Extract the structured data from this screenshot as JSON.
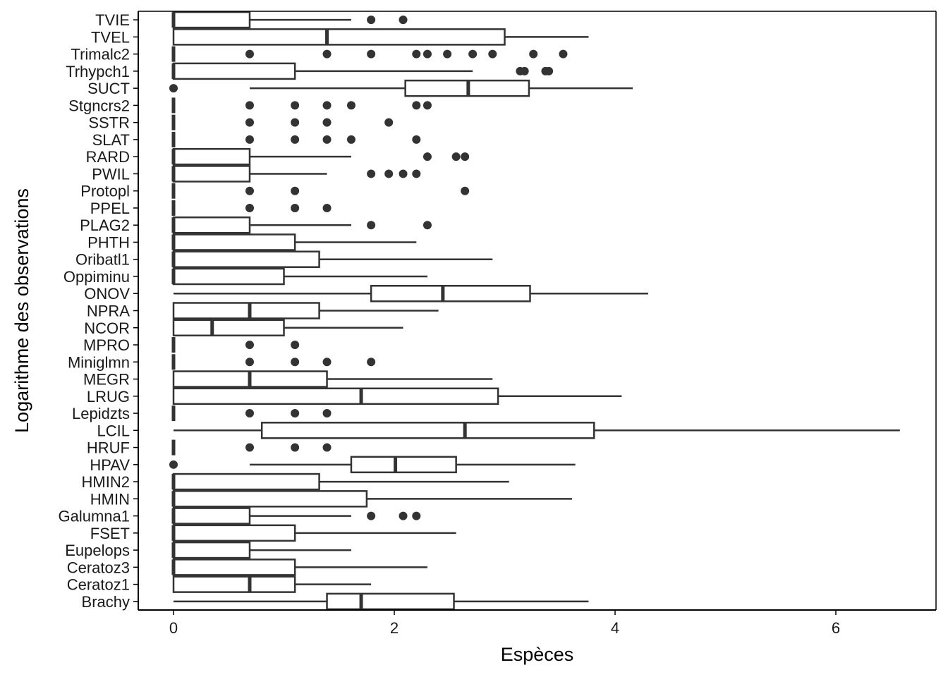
{
  "chart_data": {
    "type": "boxplot",
    "orientation": "horizontal",
    "xlabel": "Espèces",
    "ylabel": "Logarithme des observations",
    "xlim": [
      -0.34,
      6.93
    ],
    "xticks": [
      0,
      2,
      4,
      6
    ],
    "xtick_labels": [
      "0",
      "2",
      "4",
      "6"
    ],
    "grid": false,
    "colors": {
      "box_fill": "#ffffff",
      "line": "#333333",
      "outlier": "#333333",
      "axis": "#000000"
    },
    "categories": [
      {
        "name": "TVIE",
        "whisker_low": 0,
        "q1": 0,
        "median": 0,
        "q3": 0.69,
        "whisker_high": 1.61,
        "outliers": [
          1.79,
          2.08
        ]
      },
      {
        "name": "TVEL",
        "whisker_low": 0,
        "q1": 0,
        "median": 1.39,
        "q3": 3.0,
        "whisker_high": 3.76,
        "outliers": []
      },
      {
        "name": "Trimalc2",
        "whisker_low": 0,
        "q1": 0,
        "median": 0,
        "q3": 0,
        "whisker_high": 0,
        "outliers": [
          0.69,
          1.39,
          1.79,
          2.2,
          2.3,
          2.48,
          2.71,
          2.89,
          3.26,
          3.53
        ]
      },
      {
        "name": "Trhypch1",
        "whisker_low": 0,
        "q1": 0,
        "median": 0,
        "q3": 1.1,
        "whisker_high": 2.71,
        "outliers": [
          3.14,
          3.18,
          3.37,
          3.4
        ]
      },
      {
        "name": "SUCT",
        "whisker_low": 0.69,
        "q1": 2.1,
        "median": 2.67,
        "q3": 3.22,
        "whisker_high": 4.16,
        "outliers": [
          0
        ]
      },
      {
        "name": "Stgncrs2",
        "whisker_low": 0,
        "q1": 0,
        "median": 0,
        "q3": 0,
        "whisker_high": 0,
        "outliers": [
          0.69,
          1.1,
          1.39,
          1.61,
          2.2,
          2.3
        ]
      },
      {
        "name": "SSTR",
        "whisker_low": 0,
        "q1": 0,
        "median": 0,
        "q3": 0,
        "whisker_high": 0,
        "outliers": [
          0.69,
          1.1,
          1.39,
          1.95
        ]
      },
      {
        "name": "SLAT",
        "whisker_low": 0,
        "q1": 0,
        "median": 0,
        "q3": 0,
        "whisker_high": 0,
        "outliers": [
          0.69,
          1.1,
          1.39,
          1.61,
          2.2
        ]
      },
      {
        "name": "RARD",
        "whisker_low": 0,
        "q1": 0,
        "median": 0,
        "q3": 0.69,
        "whisker_high": 1.61,
        "outliers": [
          2.3,
          2.56,
          2.64
        ]
      },
      {
        "name": "PWIL",
        "whisker_low": 0,
        "q1": 0,
        "median": 0,
        "q3": 0.69,
        "whisker_high": 1.39,
        "outliers": [
          1.79,
          1.95,
          2.08,
          2.2
        ]
      },
      {
        "name": "Protopl",
        "whisker_low": 0,
        "q1": 0,
        "median": 0,
        "q3": 0,
        "whisker_high": 0,
        "outliers": [
          0.69,
          1.1,
          2.64
        ]
      },
      {
        "name": "PPEL",
        "whisker_low": 0,
        "q1": 0,
        "median": 0,
        "q3": 0,
        "whisker_high": 0,
        "outliers": [
          0.69,
          1.1,
          1.39
        ]
      },
      {
        "name": "PLAG2",
        "whisker_low": 0,
        "q1": 0,
        "median": 0,
        "q3": 0.69,
        "whisker_high": 1.61,
        "outliers": [
          1.79,
          2.3
        ]
      },
      {
        "name": "PHTH",
        "whisker_low": 0,
        "q1": 0,
        "median": 0,
        "q3": 1.1,
        "whisker_high": 2.2,
        "outliers": []
      },
      {
        "name": "Oribatl1",
        "whisker_low": 0,
        "q1": 0,
        "median": 0,
        "q3": 1.32,
        "whisker_high": 2.89,
        "outliers": []
      },
      {
        "name": "Oppiminu",
        "whisker_low": 0,
        "q1": 0,
        "median": 0,
        "q3": 1.0,
        "whisker_high": 2.3,
        "outliers": []
      },
      {
        "name": "ONOV",
        "whisker_low": 0,
        "q1": 1.79,
        "median": 2.44,
        "q3": 3.23,
        "whisker_high": 4.3,
        "outliers": []
      },
      {
        "name": "NPRA",
        "whisker_low": 0,
        "q1": 0,
        "median": 0.69,
        "q3": 1.32,
        "whisker_high": 2.4,
        "outliers": []
      },
      {
        "name": "NCOR",
        "whisker_low": 0,
        "q1": 0,
        "median": 0.35,
        "q3": 1.0,
        "whisker_high": 2.08,
        "outliers": []
      },
      {
        "name": "MPRO",
        "whisker_low": 0,
        "q1": 0,
        "median": 0,
        "q3": 0,
        "whisker_high": 0,
        "outliers": [
          0.69,
          1.1
        ]
      },
      {
        "name": "Miniglmn",
        "whisker_low": 0,
        "q1": 0,
        "median": 0,
        "q3": 0,
        "whisker_high": 0,
        "outliers": [
          0.69,
          1.1,
          1.39,
          1.79
        ]
      },
      {
        "name": "MEGR",
        "whisker_low": 0,
        "q1": 0,
        "median": 0.69,
        "q3": 1.39,
        "whisker_high": 2.89,
        "outliers": []
      },
      {
        "name": "LRUG",
        "whisker_low": 0,
        "q1": 0,
        "median": 1.7,
        "q3": 2.94,
        "whisker_high": 4.06,
        "outliers": []
      },
      {
        "name": "Lepidzts",
        "whisker_low": 0,
        "q1": 0,
        "median": 0,
        "q3": 0,
        "whisker_high": 0,
        "outliers": [
          0.69,
          1.1,
          1.39
        ]
      },
      {
        "name": "LCIL",
        "whisker_low": 0,
        "q1": 0.8,
        "median": 2.64,
        "q3": 3.81,
        "whisker_high": 6.58,
        "outliers": []
      },
      {
        "name": "HRUF",
        "whisker_low": 0,
        "q1": 0,
        "median": 0,
        "q3": 0,
        "whisker_high": 0,
        "outliers": [
          0.69,
          1.1,
          1.39
        ]
      },
      {
        "name": "HPAV",
        "whisker_low": 0.69,
        "q1": 1.61,
        "median": 2.01,
        "q3": 2.56,
        "whisker_high": 3.64,
        "outliers": [
          0
        ]
      },
      {
        "name": "HMIN2",
        "whisker_low": 0,
        "q1": 0,
        "median": 0,
        "q3": 1.32,
        "whisker_high": 3.04,
        "outliers": []
      },
      {
        "name": "HMIN",
        "whisker_low": 0,
        "q1": 0,
        "median": 0,
        "q3": 1.75,
        "whisker_high": 3.61,
        "outliers": []
      },
      {
        "name": "Galumna1",
        "whisker_low": 0,
        "q1": 0,
        "median": 0,
        "q3": 0.69,
        "whisker_high": 1.61,
        "outliers": [
          1.79,
          2.08,
          2.2
        ]
      },
      {
        "name": "FSET",
        "whisker_low": 0,
        "q1": 0,
        "median": 0,
        "q3": 1.1,
        "whisker_high": 2.56,
        "outliers": []
      },
      {
        "name": "Eupelops",
        "whisker_low": 0,
        "q1": 0,
        "median": 0,
        "q3": 0.69,
        "whisker_high": 1.61,
        "outliers": []
      },
      {
        "name": "Ceratoz3",
        "whisker_low": 0,
        "q1": 0,
        "median": 0,
        "q3": 1.1,
        "whisker_high": 2.3,
        "outliers": []
      },
      {
        "name": "Ceratoz1",
        "whisker_low": 0,
        "q1": 0,
        "median": 0.69,
        "q3": 1.1,
        "whisker_high": 1.79,
        "outliers": []
      },
      {
        "name": "Brachy",
        "whisker_low": 0,
        "q1": 1.39,
        "median": 1.7,
        "q3": 2.54,
        "whisker_high": 3.76,
        "outliers": []
      }
    ]
  }
}
